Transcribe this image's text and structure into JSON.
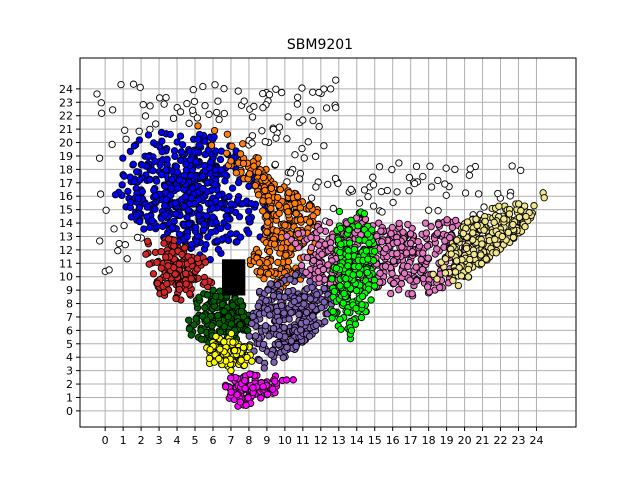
{
  "chart_data": {
    "type": "scatter",
    "title": "SBM9201",
    "xlabel": "",
    "ylabel": "",
    "xlim": [
      -1.4,
      26.2
    ],
    "ylim": [
      -1.2,
      26.3
    ],
    "x_ticks": [
      0,
      1,
      2,
      3,
      4,
      5,
      6,
      7,
      8,
      9,
      10,
      11,
      12,
      13,
      14,
      15,
      16,
      17,
      18,
      19,
      20,
      21,
      22,
      23,
      24
    ],
    "y_ticks": [
      0,
      1,
      2,
      3,
      4,
      5,
      6,
      7,
      8,
      9,
      10,
      11,
      12,
      13,
      14,
      15,
      16,
      17,
      18,
      19,
      20,
      21,
      22,
      23,
      24
    ],
    "grid": true,
    "marker_edge_color": "#000000",
    "background_points_color": "#ffffff",
    "black_square": {
      "x": [
        6.5,
        7.8
      ],
      "y": [
        8.6,
        11.3
      ],
      "color": "#000000"
    },
    "clusters": [
      {
        "color": "#0000ff",
        "center": [
          4.5,
          16.0
        ],
        "spread": [
          2.3,
          3.0
        ],
        "count": 520,
        "shape": [
          [
            0.5,
            16
          ],
          [
            1,
            19
          ],
          [
            2,
            20.5
          ],
          [
            4,
            21
          ],
          [
            6,
            20.5
          ],
          [
            8,
            19
          ],
          [
            9.2,
            16
          ],
          [
            9,
            13
          ],
          [
            6,
            11.2
          ],
          [
            4,
            12
          ],
          [
            2.5,
            13
          ],
          [
            1,
            15
          ]
        ]
      },
      {
        "color": "#ff7f0e",
        "center": [
          9.5,
          15.0
        ],
        "spread": [
          2.0,
          4.0
        ],
        "count": 320,
        "shape": [
          [
            5,
            21.5
          ],
          [
            7,
            21
          ],
          [
            8.5,
            19
          ],
          [
            9.5,
            17
          ],
          [
            11,
            16
          ],
          [
            12,
            15.5
          ],
          [
            12,
            13
          ],
          [
            11,
            10
          ],
          [
            10,
            8.5
          ],
          [
            9,
            9
          ],
          [
            8,
            11
          ],
          [
            9,
            14
          ],
          [
            8,
            17
          ],
          [
            6,
            19
          ],
          [
            4,
            21
          ]
        ]
      },
      {
        "color": "#d62728",
        "center": [
          4.2,
          10.5
        ],
        "spread": [
          1.3,
          1.5
        ],
        "count": 170,
        "shape": [
          [
            2,
            13
          ],
          [
            3,
            13.5
          ],
          [
            5,
            12
          ],
          [
            6,
            11
          ],
          [
            6,
            9
          ],
          [
            4.5,
            8
          ],
          [
            3,
            8.5
          ],
          [
            2.5,
            10
          ]
        ]
      },
      {
        "color": "#006400",
        "center": [
          6.5,
          7.0
        ],
        "spread": [
          1.3,
          1.5
        ],
        "count": 170,
        "shape": [
          [
            5,
            9
          ],
          [
            6.5,
            9
          ],
          [
            8,
            8.5
          ],
          [
            8,
            6
          ],
          [
            7,
            5
          ],
          [
            5,
            5
          ],
          [
            4.5,
            6.5
          ]
        ]
      },
      {
        "color": "#8064b4",
        "center": [
          10.0,
          7.0
        ],
        "spread": [
          2.0,
          2.2
        ],
        "count": 300,
        "shape": [
          [
            8.5,
            9
          ],
          [
            10,
            10
          ],
          [
            11,
            10.5
          ],
          [
            12.5,
            9.5
          ],
          [
            13,
            8
          ],
          [
            12,
            6
          ],
          [
            10,
            4
          ],
          [
            9,
            3
          ],
          [
            8,
            4
          ],
          [
            8,
            6.5
          ]
        ]
      },
      {
        "color": "#ffff00",
        "center": [
          7.0,
          4.3
        ],
        "spread": [
          1.0,
          0.8
        ],
        "count": 110,
        "shape": [
          [
            5.5,
            5.5
          ],
          [
            7,
            6
          ],
          [
            8,
            5
          ],
          [
            8.5,
            3.5
          ],
          [
            7,
            3
          ],
          [
            5.8,
            3.5
          ]
        ]
      },
      {
        "color": "#ff00ff",
        "center": [
          8.0,
          1.6
        ],
        "spread": [
          1.3,
          0.8
        ],
        "count": 110,
        "shape": [
          [
            6.5,
            2.5
          ],
          [
            8,
            3
          ],
          [
            10,
            3
          ],
          [
            11,
            2.5
          ],
          [
            9,
            1
          ],
          [
            7.5,
            0
          ],
          [
            7,
            0.5
          ]
        ]
      },
      {
        "color": "#e377c2",
        "center": [
          15.5,
          11.5
        ],
        "spread": [
          4.5,
          2.5
        ],
        "count": 480,
        "shape": [
          [
            10,
            13
          ],
          [
            12,
            14
          ],
          [
            14,
            14.5
          ],
          [
            16,
            14
          ],
          [
            18,
            14
          ],
          [
            20,
            14.5
          ],
          [
            21,
            14
          ],
          [
            20,
            11
          ],
          [
            19,
            9
          ],
          [
            17,
            8
          ],
          [
            15,
            9
          ],
          [
            13,
            9
          ],
          [
            11,
            10
          ]
        ]
      },
      {
        "color": "#00ff00",
        "center": [
          13.8,
          10.0
        ],
        "spread": [
          1.2,
          2.6
        ],
        "count": 220,
        "shape": [
          [
            13,
            15
          ],
          [
            14.5,
            15.5
          ],
          [
            15,
            13
          ],
          [
            15,
            9
          ],
          [
            14.5,
            6.5
          ],
          [
            13.5,
            5
          ],
          [
            12.5,
            6
          ],
          [
            12.5,
            9
          ],
          [
            12.8,
            12
          ]
        ]
      },
      {
        "color": "#f0e68c",
        "center": [
          21.5,
          12.5
        ],
        "spread": [
          2.5,
          2.0
        ],
        "count": 280,
        "shape": [
          [
            18,
            10
          ],
          [
            19,
            12
          ],
          [
            20,
            14
          ],
          [
            22,
            15.5
          ],
          [
            24,
            16
          ],
          [
            25,
            16.8
          ],
          [
            24,
            15
          ],
          [
            23,
            13
          ],
          [
            21,
            11
          ],
          [
            19.5,
            9
          ],
          [
            18,
            9
          ]
        ]
      }
    ]
  }
}
